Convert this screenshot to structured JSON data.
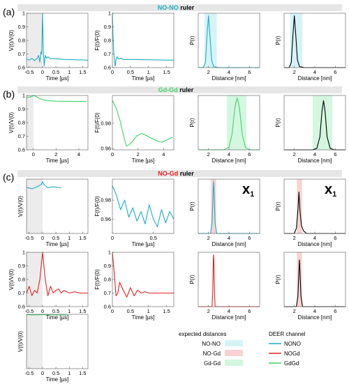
{
  "figure": {
    "sections": [
      {
        "letter": "(a)",
        "ruler": "NO-NO",
        "ruler_suffix": " ruler",
        "color": "#1aaec2"
      },
      {
        "letter": "(b)",
        "ruler": "Gd-Gd",
        "ruler_suffix": " ruler",
        "color": "#3fd46a"
      },
      {
        "letter": "(c)",
        "ruler": "NO-Gd",
        "ruler_suffix": " ruler",
        "color": "#e52222"
      }
    ],
    "scale_marks": [
      {
        "main": "x",
        "sub": "1"
      },
      {
        "main": "x",
        "sub": "1"
      }
    ],
    "legend": {
      "col1_title": "expected distances",
      "col2_title": "DEER channel",
      "col1_items": [
        {
          "label": "NO-NO",
          "color": "#d6f3f8"
        },
        {
          "label": "NO-Gd",
          "color": "#f7d3d3"
        },
        {
          "label": "Gd-Gd",
          "color": "#d4f7df"
        }
      ],
      "col2_items": [
        {
          "label": "NONO",
          "color": "#1aaec2"
        },
        {
          "label": "NOGd",
          "color": "#e52222"
        },
        {
          "label": "GdGd",
          "color": "#3fd46a"
        }
      ]
    }
  },
  "chart_data": [
    {
      "id": "a1",
      "type": "line",
      "series_color": "#1aaec2",
      "xlabel": "Time [µs]",
      "ylabel": "V(t)/V(0)",
      "xlim": [
        -0.6,
        1.7
      ],
      "ylim": [
        0.6,
        1.0
      ],
      "xticks": [
        -0.5,
        0,
        0.5,
        1,
        1.5
      ],
      "xtick_labels": [
        "-0.5",
        "0",
        "0.5",
        "1",
        "1.5"
      ],
      "yticks": [
        0.6,
        0.7,
        0.8,
        0.9,
        1.0
      ],
      "ytick_labels": [
        "0.6",
        "0.7",
        "0.8",
        "0.9",
        "1"
      ],
      "zero_time_shade": [
        -0.6,
        0
      ],
      "x": [
        -0.6,
        -0.5,
        -0.4,
        -0.3,
        -0.2,
        -0.15,
        -0.1,
        -0.06,
        -0.03,
        0,
        0.03,
        0.06,
        0.1,
        0.15,
        0.2,
        0.3,
        0.5,
        0.8,
        1.2,
        1.7
      ],
      "y": [
        0.665,
        0.655,
        0.668,
        0.652,
        0.668,
        0.69,
        0.64,
        0.715,
        0.7,
        1.0,
        0.72,
        0.61,
        0.69,
        0.668,
        0.68,
        0.665,
        0.665,
        0.66,
        0.658,
        0.655
      ]
    },
    {
      "id": "a2",
      "type": "line",
      "series_color": "#1aaec2",
      "xlabel": "Time [µs]",
      "ylabel": "F(t)/F(0)",
      "xlim": [
        0,
        1.7
      ],
      "ylim": [
        0.6,
        1.0
      ],
      "xticks": [
        0,
        0.5,
        1,
        1.5
      ],
      "xtick_labels": [
        "0",
        "0.5",
        "1",
        "1.5"
      ],
      "yticks": [
        0.6,
        0.7,
        0.8,
        0.9,
        1.0
      ],
      "ytick_labels": [
        "0.6",
        "0.7",
        "0.8",
        "0.9",
        "1"
      ],
      "x": [
        0,
        0.02,
        0.04,
        0.06,
        0.08,
        0.1,
        0.13,
        0.16,
        0.2,
        0.25,
        0.3,
        0.4,
        0.6,
        0.9,
        1.3,
        1.7
      ],
      "y": [
        1.0,
        0.82,
        0.7,
        0.65,
        0.61,
        0.66,
        0.68,
        0.665,
        0.665,
        0.67,
        0.66,
        0.66,
        0.66,
        0.658,
        0.656,
        0.655
      ]
    },
    {
      "id": "a3",
      "type": "line",
      "series_color": "#1aaec2",
      "xlabel": "Distance [nm]",
      "ylabel": "P(r)",
      "xlim": [
        1.0,
        7.0
      ],
      "ylim": [
        0,
        1.05
      ],
      "xticks": [
        2,
        4,
        6
      ],
      "xtick_labels": [
        "2",
        "4",
        "6"
      ],
      "yticks": [],
      "band": [
        1.6,
        2.8
      ],
      "band_color": "#d6f3f8",
      "x": [
        1.0,
        1.5,
        1.7,
        1.85,
        2.0,
        2.15,
        2.3,
        2.5,
        3.0,
        7.0
      ],
      "y": [
        0,
        0,
        0.1,
        0.6,
        1.0,
        0.6,
        0.15,
        0.02,
        0,
        0
      ]
    },
    {
      "id": "a4",
      "type": "line",
      "series_color": "#000000",
      "xlabel": "Distance [nm]",
      "ylabel": "P(r)",
      "xlim": [
        1.0,
        7.0
      ],
      "ylim": [
        0,
        1.05
      ],
      "xticks": [
        2,
        4,
        6
      ],
      "xtick_labels": [
        "2",
        "4",
        "6"
      ],
      "yticks": [],
      "band": [
        1.6,
        2.8
      ],
      "band_color": "#d6f3f8",
      "x": [
        1.0,
        1.5,
        1.7,
        1.85,
        2.0,
        2.15,
        2.3,
        2.5,
        3.0,
        7.0
      ],
      "y": [
        0,
        0,
        0.1,
        0.6,
        1.0,
        0.6,
        0.15,
        0.02,
        0,
        0
      ]
    },
    {
      "id": "b1",
      "type": "line",
      "series_color": "#3fd46a",
      "xlabel": "Time [µs]",
      "ylabel": "V(t)/V(0)",
      "xlim": [
        -0.6,
        4.8
      ],
      "ylim": [
        0.6,
        1.0
      ],
      "xticks": [
        0,
        2,
        4
      ],
      "xtick_labels": [
        "0",
        "2",
        "4"
      ],
      "yticks": [
        0.6,
        0.7,
        0.8,
        0.9,
        1.0
      ],
      "ytick_labels": [
        "0.6",
        "0.7",
        "0.8",
        "0.9",
        "1"
      ],
      "zero_time_shade": [
        -0.6,
        0
      ],
      "x": [
        -0.6,
        -0.2,
        0,
        0.3,
        0.6,
        1.0,
        1.5,
        2.0,
        3.0,
        4.0,
        4.7
      ],
      "y": [
        0.985,
        0.99,
        1.0,
        0.99,
        0.975,
        0.965,
        0.96,
        0.958,
        0.957,
        0.956,
        0.955
      ]
    },
    {
      "id": "b2",
      "type": "line",
      "series_color": "#3fd46a",
      "xlabel": "Time [µs]",
      "ylabel": "F(t)/F(0)",
      "xlim": [
        0,
        4.8
      ],
      "ylim": [
        0.959,
        1.002
      ],
      "xticks": [
        0,
        2,
        4
      ],
      "xtick_labels": [
        "0",
        "2",
        "4"
      ],
      "yticks": [
        0.96,
        0.98
      ],
      "ytick_labels": [
        "0.96",
        "0.98"
      ],
      "x": [
        0,
        0.3,
        0.6,
        0.9,
        1.1,
        1.3,
        1.6,
        1.9,
        2.3,
        2.7,
        3.1,
        3.5,
        3.9,
        4.3,
        4.7
      ],
      "y": [
        0.998,
        0.992,
        0.982,
        0.969,
        0.962,
        0.963,
        0.966,
        0.97,
        0.972,
        0.97,
        0.968,
        0.966,
        0.965,
        0.967,
        0.969
      ]
    },
    {
      "id": "b3",
      "type": "line",
      "series_color": "#3fd46a",
      "xlabel": "Distance [nm]",
      "ylabel": "P(r)",
      "xlim": [
        1.0,
        7.0
      ],
      "ylim": [
        0,
        1.05
      ],
      "xticks": [
        2,
        4,
        6
      ],
      "xtick_labels": [
        "2",
        "4",
        "6"
      ],
      "yticks": [],
      "band": [
        3.8,
        5.7
      ],
      "band_color": "#d4f7df",
      "x": [
        1.0,
        3.5,
        4.0,
        4.3,
        4.6,
        4.8,
        5.0,
        5.3,
        5.6,
        6.0,
        7.0
      ],
      "y": [
        0,
        0,
        0.05,
        0.3,
        0.85,
        1.0,
        0.85,
        0.3,
        0.05,
        0,
        0
      ]
    },
    {
      "id": "b4",
      "type": "line",
      "series_color": "#000000",
      "xlabel": "Distance [nm]",
      "ylabel": "P(r)",
      "xlim": [
        1.0,
        7.0
      ],
      "ylim": [
        0,
        1.05
      ],
      "xticks": [
        2,
        4,
        6
      ],
      "xtick_labels": [
        "2",
        "4",
        "6"
      ],
      "yticks": [],
      "band": [
        3.8,
        5.7
      ],
      "band_color": "#d4f7df",
      "x": [
        1.0,
        3.8,
        4.2,
        4.5,
        4.7,
        4.85,
        5.0,
        5.2,
        5.5,
        5.9,
        7.0
      ],
      "y": [
        0,
        0,
        0.03,
        0.25,
        0.75,
        0.95,
        0.75,
        0.25,
        0.03,
        0,
        0
      ]
    },
    {
      "id": "c1",
      "type": "line",
      "series_color": "#1aaec2",
      "xlabel": "Time [µs]",
      "ylabel": "V(t)/V(0)",
      "xlim": [
        -0.6,
        1.7
      ],
      "ylim": [
        0.9,
        1.0
      ],
      "xticks": [
        -0.5,
        0,
        0.5,
        1,
        1.5
      ],
      "xtick_labels": [
        "-0.5",
        "0",
        "0.5",
        "1",
        "1.5"
      ],
      "yticks": [],
      "zero_time_shade": [
        -0.6,
        0
      ],
      "x": [
        -0.6,
        -0.4,
        -0.2,
        -0.05,
        0,
        0.05,
        0.2,
        0.4,
        0.7
      ],
      "y": [
        0.985,
        0.982,
        0.986,
        0.99,
        0.995,
        0.99,
        0.984,
        0.986,
        0.984
      ]
    },
    {
      "id": "c2",
      "type": "line",
      "series_color": "#1aaec2",
      "xlabel": "Time [µs]",
      "ylabel": "F(t)/F(0)",
      "xlim": [
        0,
        0.75
      ],
      "ylim": [
        0.945,
        1.002
      ],
      "xticks": [
        0,
        0.5
      ],
      "xtick_labels": [
        "0",
        "0.5"
      ],
      "yticks": [
        0.96,
        0.98
      ],
      "ytick_labels": [
        "0.96",
        "0.98"
      ],
      "x": [
        0,
        0.05,
        0.1,
        0.15,
        0.2,
        0.25,
        0.3,
        0.35,
        0.4,
        0.45,
        0.5,
        0.55,
        0.6,
        0.65,
        0.7,
        0.75
      ],
      "y": [
        0.995,
        0.985,
        0.97,
        0.98,
        0.962,
        0.972,
        0.958,
        0.968,
        0.955,
        0.975,
        0.96,
        0.952,
        0.97,
        0.956,
        0.968,
        0.96
      ]
    },
    {
      "id": "c3",
      "type": "line",
      "series_color": "#1aaec2",
      "xlabel": "Distance [nm]",
      "ylabel": "P(r)",
      "xlim": [
        1.0,
        7.0
      ],
      "ylim": [
        0,
        1.05
      ],
      "xticks": [
        2,
        4,
        6
      ],
      "xtick_labels": [
        "2",
        "4",
        "6"
      ],
      "yticks": [],
      "band": [
        2.25,
        2.75
      ],
      "band_color": "#f7d3d3",
      "marker": "x1",
      "x": [
        1.0,
        2.2,
        2.35,
        2.45,
        2.5,
        2.55,
        2.65,
        2.8,
        7.0
      ],
      "y": [
        0,
        0,
        0.2,
        0.8,
        1.0,
        0.8,
        0.2,
        0,
        0
      ]
    },
    {
      "id": "c4",
      "type": "line",
      "series_color": "#000000",
      "xlabel": "Distance [nm]",
      "ylabel": "P(r)",
      "xlim": [
        1.0,
        7.0
      ],
      "ylim": [
        0,
        1.05
      ],
      "xticks": [
        2,
        4,
        6
      ],
      "xtick_labels": [
        "2",
        "4",
        "6"
      ],
      "yticks": [],
      "band": [
        2.25,
        2.75
      ],
      "band_color": "#f7d3d3",
      "marker": "x1",
      "x": [
        1.0,
        2.0,
        2.2,
        2.35,
        2.45,
        2.55,
        2.7,
        2.9,
        3.2,
        7.0
      ],
      "y": [
        0,
        0,
        0.1,
        0.45,
        0.8,
        0.45,
        0.15,
        0.05,
        0,
        0
      ]
    },
    {
      "id": "d1",
      "type": "line",
      "series_color": "#e52222",
      "xlabel": "Time [µs]",
      "ylabel": "V(t)/V(0)",
      "xlim": [
        -0.6,
        1.7
      ],
      "ylim": [
        0.6,
        1.0
      ],
      "xticks": [
        -0.5,
        0,
        0.5,
        1,
        1.5
      ],
      "xtick_labels": [
        "-0.5",
        "0",
        "0.5",
        "1",
        "1.5"
      ],
      "yticks": [
        0.6,
        0.7,
        0.8,
        0.9,
        1.0
      ],
      "ytick_labels": [
        "0.6",
        "0.7",
        "0.8",
        "0.9",
        "1"
      ],
      "zero_time_shade": [
        -0.6,
        0
      ],
      "x": [
        -0.6,
        -0.5,
        -0.4,
        -0.3,
        -0.2,
        -0.1,
        0,
        0.1,
        0.2,
        0.3,
        0.4,
        0.5,
        0.6,
        0.7,
        0.8,
        0.9,
        1.0,
        1.2,
        1.4,
        1.7
      ],
      "y": [
        0.7,
        0.75,
        0.68,
        0.72,
        0.7,
        0.8,
        1.0,
        0.8,
        0.68,
        0.75,
        0.7,
        0.72,
        0.73,
        0.7,
        0.72,
        0.71,
        0.7,
        0.71,
        0.7,
        0.7
      ]
    },
    {
      "id": "d2",
      "type": "line",
      "series_color": "#e52222",
      "xlabel": "Time [µs]",
      "ylabel": "F(t)/F(0)",
      "xlim": [
        0,
        1.7
      ],
      "ylim": [
        0.6,
        1.0
      ],
      "xticks": [
        0,
        0.5,
        1,
        1.5
      ],
      "xtick_labels": [
        "0",
        "0.5",
        "1",
        "1.5"
      ],
      "yticks": [
        0.6,
        0.7,
        0.8,
        0.9,
        1.0
      ],
      "ytick_labels": [
        "0.6",
        "0.7",
        "0.8",
        "0.9",
        "1"
      ],
      "x": [
        0,
        0.05,
        0.1,
        0.15,
        0.2,
        0.3,
        0.4,
        0.5,
        0.6,
        0.7,
        0.8,
        0.9,
        1.0,
        1.2,
        1.4,
        1.7
      ],
      "y": [
        1.0,
        0.85,
        0.68,
        0.7,
        0.78,
        0.72,
        0.67,
        0.74,
        0.68,
        0.72,
        0.7,
        0.71,
        0.7,
        0.7,
        0.7,
        0.7
      ]
    },
    {
      "id": "d3",
      "type": "line",
      "series_color": "#e52222",
      "xlabel": "Distance [nm]",
      "ylabel": "P(r)",
      "xlim": [
        1.0,
        7.0
      ],
      "ylim": [
        0,
        1.05
      ],
      "xticks": [
        2,
        4,
        6
      ],
      "xtick_labels": [
        "2",
        "4",
        "6"
      ],
      "yticks": [],
      "x": [
        1.0,
        2.35,
        2.42,
        2.47,
        2.5,
        2.53,
        2.58,
        2.65,
        7.0
      ],
      "y": [
        0,
        0,
        0.3,
        0.9,
        1.0,
        0.9,
        0.3,
        0,
        0
      ]
    },
    {
      "id": "d4",
      "type": "line",
      "series_color": "#000000",
      "xlabel": "Distance [nm]",
      "ylabel": "P(r)",
      "xlim": [
        1.0,
        7.0
      ],
      "ylim": [
        0,
        1.05
      ],
      "xticks": [
        2,
        4,
        6
      ],
      "xtick_labels": [
        "2",
        "4",
        "6"
      ],
      "yticks": [],
      "band": [
        2.25,
        2.75
      ],
      "band_color": "#f7d3d3",
      "x": [
        1.0,
        2.2,
        2.35,
        2.45,
        2.5,
        2.55,
        2.65,
        2.8,
        7.0
      ],
      "y": [
        0,
        0,
        0.2,
        0.7,
        0.9,
        0.7,
        0.2,
        0,
        0
      ]
    },
    {
      "id": "e1",
      "type": "line",
      "series_color": "#3fd46a",
      "xlabel": "Time [µs]",
      "ylabel": "V(t)/V(0)",
      "xlim": [
        -0.6,
        1.7
      ],
      "ylim": [
        0.6,
        1.0
      ],
      "xticks": [
        -0.5,
        0,
        0.5,
        1,
        1.5
      ],
      "xtick_labels": [
        "-0.5",
        "0",
        "0.5",
        "1",
        "1.5"
      ],
      "yticks": [],
      "zero_time_shade": [
        -0.6,
        0
      ],
      "x": [
        -0.6,
        -0.3,
        0,
        0.3,
        0.6,
        0.9
      ],
      "y": [
        0.997,
        0.996,
        0.998,
        0.997,
        0.996,
        0.996
      ]
    }
  ]
}
